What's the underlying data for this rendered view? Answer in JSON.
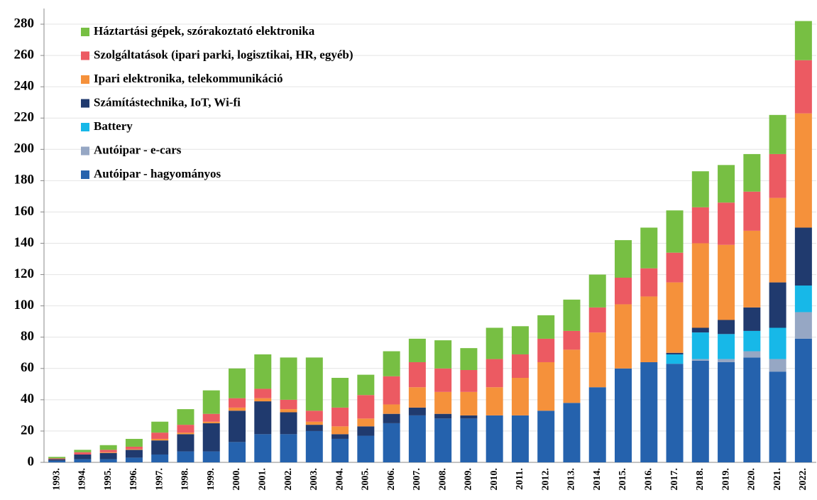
{
  "chart_data": {
    "type": "stacked_bar",
    "categories": [
      "1993.",
      "1994.",
      "1995.",
      "1996.",
      "1997.",
      "1998.",
      "1999.",
      "2000.",
      "2001.",
      "2002.",
      "2003.",
      "2004.",
      "2005.",
      "2006.",
      "2007.",
      "2008.",
      "2009.",
      "2010.",
      "2011.",
      "2012.",
      "2013.",
      "2014.",
      "2015.",
      "2016.",
      "2017.",
      "2018.",
      "2019.",
      "2020.",
      "2021.",
      "2022."
    ],
    "series": [
      {
        "name": "Autóipar - hagyományos",
        "color": "#2562ad",
        "values": [
          1,
          2,
          2,
          3,
          5,
          7,
          7,
          13,
          18,
          18,
          20,
          15,
          17,
          25,
          30,
          28,
          28,
          30,
          30,
          33,
          38,
          48,
          60,
          64,
          63,
          65,
          64,
          67,
          58,
          79
        ]
      },
      {
        "name": "Autóipar - e-cars",
        "color": "#96a7c4",
        "values": [
          0,
          0,
          0,
          0,
          0,
          0,
          0,
          0,
          0,
          0,
          0,
          0,
          0,
          0,
          0,
          0,
          0,
          0,
          0,
          0,
          0,
          0,
          0,
          0,
          0,
          1,
          2,
          4,
          8,
          17
        ]
      },
      {
        "name": "Battery",
        "color": "#17b8e8",
        "values": [
          0,
          0,
          0,
          0,
          0,
          0,
          0,
          0,
          0,
          0,
          0,
          0,
          0,
          0,
          0,
          0,
          0,
          0,
          0,
          0,
          0,
          0,
          0,
          0,
          6,
          17,
          16,
          13,
          20,
          17
        ]
      },
      {
        "name": "Számítástechnika, IoT, Wi-fi",
        "color": "#203a6e",
        "values": [
          1,
          3,
          4,
          5,
          9,
          11,
          18,
          20,
          21,
          14,
          4,
          3,
          6,
          6,
          5,
          3,
          2,
          0,
          0,
          0,
          0,
          0,
          0,
          0,
          1,
          3,
          9,
          15,
          29,
          37
        ]
      },
      {
        "name": "Ipari elektronika, telekommunikáció",
        "color": "#f5913b",
        "values": [
          0,
          0,
          0.5,
          0.5,
          1,
          1,
          1,
          2,
          2,
          2,
          2,
          5,
          5,
          6,
          13,
          14,
          15,
          18,
          24,
          31,
          34,
          35,
          41,
          42,
          45,
          54,
          48,
          49,
          54,
          73
        ]
      },
      {
        "name": "Szolgáltatások (ipari parki, logisztikai, HR, egyéb)",
        "color": "#ec5a62",
        "values": [
          0.5,
          1.5,
          1.5,
          1.5,
          4,
          5,
          5,
          6,
          6,
          6,
          7,
          12,
          15,
          18,
          16,
          15,
          14,
          18,
          15,
          15,
          12,
          16,
          17,
          18,
          19,
          23,
          27,
          25,
          28,
          34
        ]
      },
      {
        "name": "Háztartási gépek, szórakoztató elektronika",
        "color": "#77bf43",
        "values": [
          1,
          1.5,
          3,
          5,
          7,
          10,
          15,
          19,
          22,
          27,
          34,
          19,
          13,
          16,
          15,
          18,
          14,
          20,
          18,
          15,
          20,
          21,
          24,
          26,
          27,
          23,
          24,
          24,
          25,
          25
        ]
      }
    ],
    "ylim": [
      0,
      290
    ],
    "yticks": [
      0,
      20,
      40,
      60,
      80,
      100,
      120,
      140,
      160,
      180,
      200,
      220,
      240,
      260,
      280
    ],
    "grid": true,
    "legend": "upper left"
  }
}
